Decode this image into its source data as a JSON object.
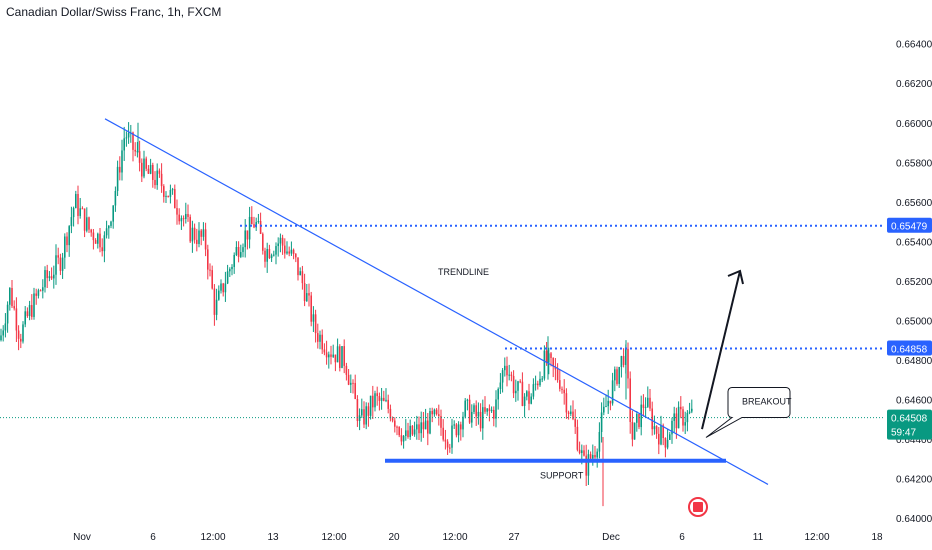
{
  "title": "Canadian Dollar/Swiss Franc, 1h, FXCM",
  "chart_data": {
    "type": "candlestick",
    "symbol": "CADCHF",
    "interval": "1h",
    "ylim": [
      0.6399,
      0.6652
    ],
    "y_ticks": [
      "0.64000",
      "0.64200",
      "0.64400",
      "0.64600",
      "0.64800",
      "0.65000",
      "0.65200",
      "0.65400",
      "0.65600",
      "0.65800",
      "0.66000",
      "0.66200",
      "0.66400"
    ],
    "x_ticks": [
      "Nov",
      "6",
      "12:00",
      "13",
      "12:00",
      "20",
      "12:00",
      "27",
      "Dec",
      "6",
      "11",
      "12:00",
      "18"
    ],
    "price_line_segments": [
      [
        0,
        0.649
      ],
      [
        10,
        0.6515
      ],
      [
        20,
        0.6492
      ],
      [
        30,
        0.6505
      ],
      [
        45,
        0.652
      ],
      [
        60,
        0.653
      ],
      [
        75,
        0.656
      ],
      [
        90,
        0.6545
      ],
      [
        105,
        0.654
      ],
      [
        115,
        0.6565
      ],
      [
        125,
        0.6595
      ],
      [
        135,
        0.6585
      ],
      [
        145,
        0.6575
      ],
      [
        160,
        0.657
      ],
      [
        175,
        0.656
      ],
      [
        190,
        0.6545
      ],
      [
        205,
        0.654
      ],
      [
        215,
        0.6505
      ],
      [
        225,
        0.652
      ],
      [
        240,
        0.654
      ],
      [
        255,
        0.655
      ],
      [
        265,
        0.6535
      ],
      [
        280,
        0.654
      ],
      [
        295,
        0.653
      ],
      [
        305,
        0.6515
      ],
      [
        315,
        0.6495
      ],
      [
        330,
        0.6485
      ],
      [
        345,
        0.648
      ],
      [
        360,
        0.6448
      ],
      [
        375,
        0.646
      ],
      [
        390,
        0.6455
      ],
      [
        405,
        0.644
      ],
      [
        420,
        0.6445
      ],
      [
        435,
        0.645
      ],
      [
        450,
        0.644
      ],
      [
        465,
        0.6455
      ],
      [
        480,
        0.645
      ],
      [
        495,
        0.6455
      ],
      [
        505,
        0.648
      ],
      [
        515,
        0.6465
      ],
      [
        530,
        0.646
      ],
      [
        545,
        0.648
      ],
      [
        560,
        0.647
      ],
      [
        575,
        0.6445
      ],
      [
        585,
        0.6425
      ],
      [
        595,
        0.6435
      ],
      [
        605,
        0.6455
      ],
      [
        615,
        0.647
      ],
      [
        625,
        0.6485
      ],
      [
        632,
        0.644
      ],
      [
        645,
        0.646
      ],
      [
        655,
        0.6445
      ],
      [
        665,
        0.644
      ],
      [
        675,
        0.645
      ],
      [
        690,
        0.6452
      ]
    ],
    "candle_seed": 7,
    "lines": {
      "trendline": {
        "from": [
          105,
          0.6602
        ],
        "to": [
          768,
          0.6417
        ]
      },
      "support": {
        "from": [
          385,
          0.6429
        ],
        "to": [
          726,
          0.6429
        ]
      },
      "resistance_upper": {
        "from": [
          240,
          0.65479
        ],
        "to": [
          885,
          0.65479
        ]
      },
      "resistance_lower": {
        "from": [
          505,
          0.64858
        ],
        "to": [
          885,
          0.64858
        ]
      },
      "current": {
        "from": [
          0,
          0.64508
        ],
        "to": [
          885,
          0.64508
        ]
      },
      "breakout_arrow": {
        "from": [
          702,
          0.6445
        ],
        "to": [
          740,
          0.6525
        ]
      }
    },
    "price_tags": [
      {
        "value": "0.65479",
        "price": 0.65479,
        "color": "#2962ff"
      },
      {
        "value": "0.64858",
        "price": 0.64858,
        "color": "#2962ff"
      },
      {
        "value": "0.64508",
        "sub": "59:47",
        "price": 0.64508,
        "color": "#089981"
      }
    ],
    "annotations": [
      {
        "text": "TRENDLINE",
        "x": 438,
        "price": 0.6523
      },
      {
        "text": "SUPPORT",
        "x": 540,
        "price": 0.642
      },
      {
        "text": "BREAKOUT",
        "x": 744,
        "price": 0.6461
      }
    ],
    "colors": {
      "up": "#089981",
      "down": "#f23645",
      "trend": "#2962ff",
      "support": "#2962ff"
    }
  }
}
